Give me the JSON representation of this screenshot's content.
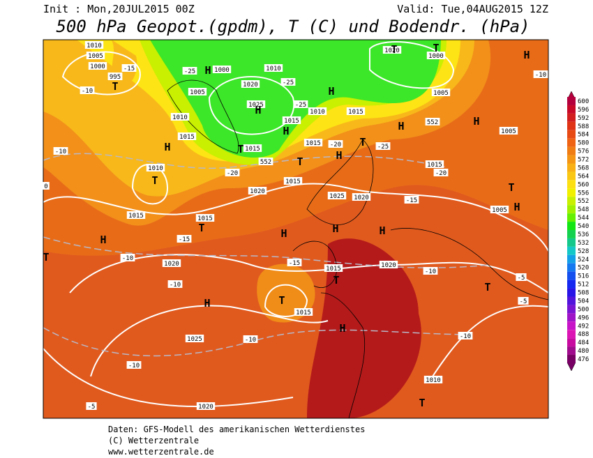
{
  "header": {
    "init": "Init : Mon,20JUL2015 00Z",
    "valid": "Valid: Tue,04AUG2015 12Z",
    "title": "500 hPa Geopot.(gpdm), T (C) und Bodendr. (hPa)"
  },
  "footer": [
    "Daten: GFS-Modell des amerikanischen Wetterdienstes",
    "(C) Wetterzentrale",
    "www.wetterzentrale.de"
  ],
  "colorbar": {
    "ticks": [
      600,
      596,
      592,
      588,
      584,
      580,
      576,
      572,
      568,
      564,
      560,
      556,
      552,
      548,
      544,
      540,
      536,
      532,
      528,
      524,
      520,
      516,
      512,
      508,
      504,
      500,
      496,
      492,
      488,
      484,
      480,
      476
    ],
    "colors": [
      "#b4003c",
      "#c80a28",
      "#d21e1e",
      "#e03214",
      "#e84a14",
      "#ee6414",
      "#f07d14",
      "#f59614",
      "#f8b014",
      "#fac814",
      "#fde014",
      "#f0f000",
      "#c8f000",
      "#a0f000",
      "#64f000",
      "#14e614",
      "#14d250",
      "#14c88c",
      "#14c8c8",
      "#14a0e6",
      "#1478f0",
      "#1450f0",
      "#1428f0",
      "#2814e6",
      "#5014dc",
      "#7814d2",
      "#a014c8",
      "#c814c8",
      "#dc14b4",
      "#c80aa0",
      "#a00a8c",
      "#780064"
    ]
  },
  "map": {
    "labels": [
      "1010",
      "1005",
      "1000",
      "995",
      "T",
      "-15",
      "-10",
      "1005",
      "-25",
      "1000",
      "H",
      "1020",
      "1025",
      "H",
      "-25",
      "1010",
      "-25",
      "1010",
      "1015",
      "H",
      "H",
      "1015",
      "1020",
      "T",
      "T",
      "1000",
      "1005",
      "552",
      "H",
      "H",
      "H",
      "-10",
      "1010",
      "1015",
      "H",
      "-10",
      "1010",
      "T",
      "1015",
      "1015",
      "T",
      "552",
      "-20",
      "1015",
      "T",
      "-20",
      "H",
      "T",
      "-25",
      "1015",
      "1020",
      "1025",
      "1020",
      "1015",
      "-20",
      "1005",
      "T",
      "H",
      "1005",
      "-15",
      "1015",
      "T",
      "-15",
      "H",
      "H",
      "H",
      "H",
      "-10",
      "1020",
      "-10",
      "-15",
      "1015",
      "T",
      "1020",
      "-10",
      "T",
      "H",
      "1015",
      "H",
      "1025",
      "-10",
      "-10",
      "T",
      "-5",
      "-5",
      "-10",
      "1010",
      "T",
      "-5",
      "1020",
      "0",
      "T"
    ]
  }
}
